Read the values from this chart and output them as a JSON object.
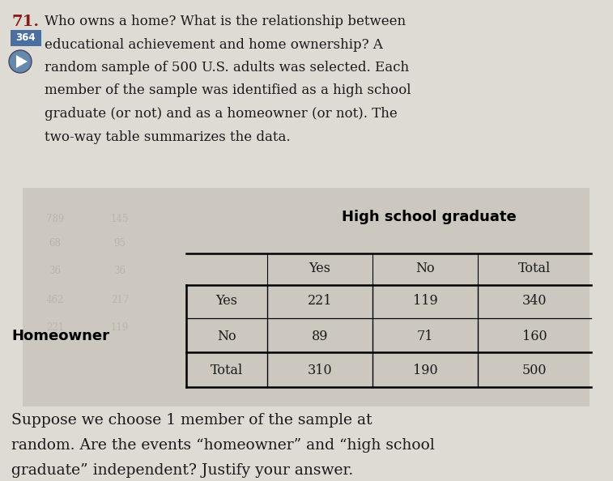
{
  "problem_number": "71.",
  "problem_label": "364",
  "intro_text_lines": [
    "Who owns a home? What is the relationship between",
    "educational achievement and home ownership? A",
    "random sample of 500 U.S. adults was selected. Each",
    "member of the sample was identified as a high school",
    "graduate (or not) and as a homeowner (or not). The",
    "two-way table summarizes the data."
  ],
  "col_header_main": "High school graduate",
  "col_headers": [
    "Yes",
    "No",
    "Total"
  ],
  "row_label_main": "Homeowner",
  "row_labels": [
    "Yes",
    "No",
    "Total"
  ],
  "table_data": [
    [
      221,
      119,
      340
    ],
    [
      89,
      71,
      160
    ],
    [
      310,
      190,
      500
    ]
  ],
  "footer_text_lines": [
    "Suppose we choose 1 member of the sample at",
    "random. Are the events “homeowner” and “high school",
    "graduate” independent? Justify your answer."
  ],
  "page_bg_color": "#dedad4",
  "table_bg_color": "#ccc8c0",
  "text_color": "#1a1a1a",
  "bold_color": "#000000",
  "label_box_color": "#4a6fa0",
  "label_text_color": "#ffffff",
  "number_color": "#8b1a1a",
  "footer_font_size": 13.5,
  "intro_font_size": 12.0,
  "table_font_size": 11.5
}
